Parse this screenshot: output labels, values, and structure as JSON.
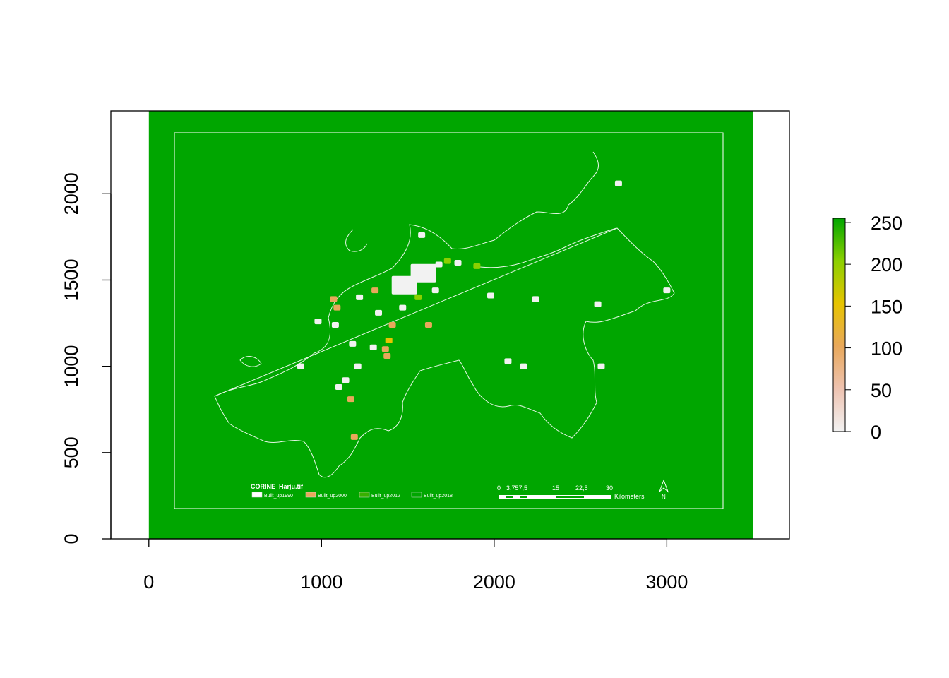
{
  "chart_data": {
    "type": "heatmap",
    "title": "",
    "xlabel": "",
    "ylabel": "",
    "xlim": [
      -220,
      3710
    ],
    "ylim": [
      0,
      2480
    ],
    "xticks": [
      0,
      1000,
      2000,
      3000
    ],
    "yticks": [
      0,
      500,
      1000,
      1500,
      2000
    ],
    "raster_extent": {
      "x": [
        0,
        3500
      ],
      "y": [
        0,
        2480
      ]
    },
    "grid": false,
    "legend_placement": "right",
    "background_value": 255,
    "colorbar": {
      "ticks": [
        0,
        50,
        100,
        150,
        200,
        250
      ],
      "range": [
        0,
        255
      ],
      "colors": [
        "#f2f2f2",
        "#eec3b1",
        "#e8a85b",
        "#e7c400",
        "#8cd000",
        "#00a600"
      ]
    },
    "embedded_map": {
      "title": "CORINE_Harju.tif",
      "legend_items": [
        {
          "label": "Built_up1990",
          "color": "#ffffff"
        },
        {
          "label": "Built_up2000",
          "color": "#e8a85b"
        },
        {
          "label": "Built_up2012",
          "color": "#38b000"
        },
        {
          "label": "Built_up2018",
          "color": "#00a600"
        }
      ],
      "scalebar_labels": [
        "0",
        "3,757,5",
        "15",
        "22,5",
        "30"
      ],
      "scalebar_unit": "Kilometers",
      "north_label": "N"
    },
    "series": [
      {
        "values": [
          {
            "x": 1480,
            "y": 1470,
            "value": 0
          },
          {
            "x": 1590,
            "y": 1540,
            "value": 0
          },
          {
            "x": 1680,
            "y": 1590,
            "value": 0
          },
          {
            "x": 1580,
            "y": 1760,
            "value": 0
          },
          {
            "x": 1790,
            "y": 1600,
            "value": 0
          },
          {
            "x": 1470,
            "y": 1340,
            "value": 0
          },
          {
            "x": 1220,
            "y": 1400,
            "value": 0
          },
          {
            "x": 1330,
            "y": 1310,
            "value": 0
          },
          {
            "x": 1300,
            "y": 1110,
            "value": 0
          },
          {
            "x": 1180,
            "y": 1130,
            "value": 0
          },
          {
            "x": 1080,
            "y": 1240,
            "value": 0
          },
          {
            "x": 980,
            "y": 1260,
            "value": 0
          },
          {
            "x": 1100,
            "y": 880,
            "value": 0
          },
          {
            "x": 1140,
            "y": 920,
            "value": 0
          },
          {
            "x": 1980,
            "y": 1410,
            "value": 0
          },
          {
            "x": 2240,
            "y": 1390,
            "value": 0
          },
          {
            "x": 2600,
            "y": 1360,
            "value": 0
          },
          {
            "x": 2080,
            "y": 1030,
            "value": 0
          },
          {
            "x": 2170,
            "y": 1000,
            "value": 0
          },
          {
            "x": 2620,
            "y": 1000,
            "value": 0
          },
          {
            "x": 2720,
            "y": 2060,
            "value": 0
          },
          {
            "x": 3000,
            "y": 1440,
            "value": 0
          },
          {
            "x": 1660,
            "y": 1440,
            "value": 0
          },
          {
            "x": 1210,
            "y": 1000,
            "value": 0
          },
          {
            "x": 880,
            "y": 1000,
            "value": 0
          },
          {
            "x": 1070,
            "y": 1390,
            "value": 100
          },
          {
            "x": 1090,
            "y": 1340,
            "value": 100
          },
          {
            "x": 1310,
            "y": 1440,
            "value": 100
          },
          {
            "x": 1370,
            "y": 1100,
            "value": 100
          },
          {
            "x": 1380,
            "y": 1060,
            "value": 100
          },
          {
            "x": 1170,
            "y": 810,
            "value": 100
          },
          {
            "x": 1410,
            "y": 1240,
            "value": 100
          },
          {
            "x": 1620,
            "y": 1240,
            "value": 100
          },
          {
            "x": 1190,
            "y": 590,
            "value": 100
          },
          {
            "x": 1390,
            "y": 1150,
            "value": 150
          },
          {
            "x": 1900,
            "y": 1580,
            "value": 200
          },
          {
            "x": 1730,
            "y": 1610,
            "value": 200
          },
          {
            "x": 1560,
            "y": 1400,
            "value": 200
          }
        ]
      }
    ]
  }
}
